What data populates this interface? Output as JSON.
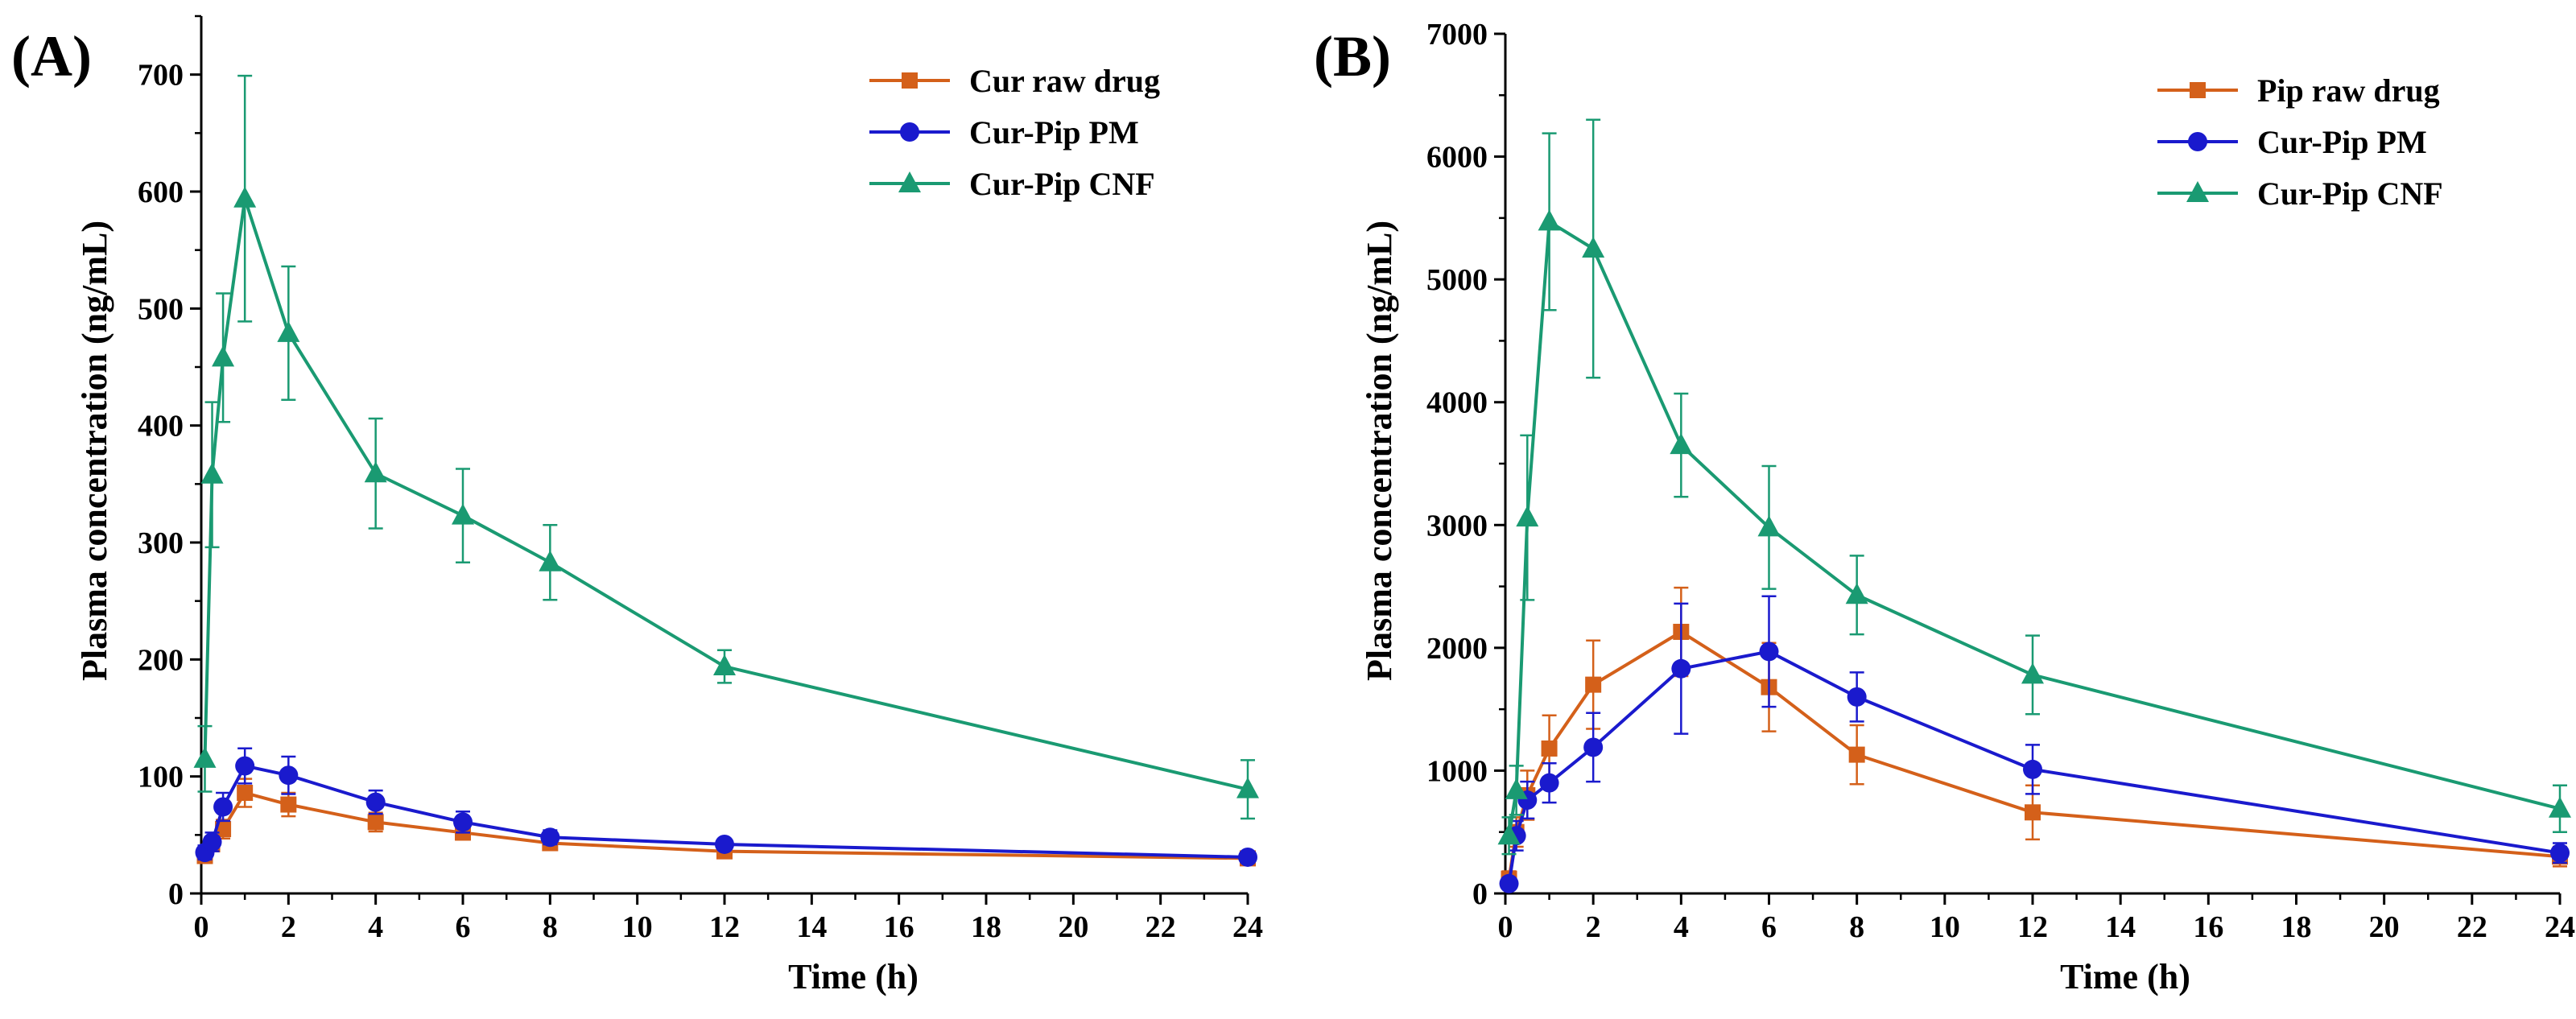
{
  "chart_data": [
    {
      "type": "line",
      "panel_label": "(A)",
      "xlabel": "Time (h)",
      "ylabel": "Plasma concentration (ng/mL)",
      "xlim": [
        0,
        24
      ],
      "ylim": [
        0,
        750
      ],
      "x_ticks": [
        0,
        2,
        4,
        6,
        8,
        10,
        12,
        14,
        16,
        18,
        20,
        22,
        24
      ],
      "x_tick_labels": [
        "0",
        "2",
        "4",
        "6",
        "8",
        "10",
        "12",
        "14",
        "16",
        "18",
        "20",
        "22",
        "24"
      ],
      "y_ticks": [
        0,
        100,
        200,
        300,
        400,
        500,
        600,
        700
      ],
      "y_tick_labels": [
        "0",
        "100",
        "200",
        "300",
        "400",
        "500",
        "600",
        "700"
      ],
      "legend_position": "top-right",
      "series": [
        {
          "name": "Cur raw drug",
          "color": "#d4601a",
          "marker": "square",
          "points": [
            {
              "x": 0.083,
              "y": 32,
              "err": 5
            },
            {
              "x": 0.25,
              "y": 42,
              "err": 6
            },
            {
              "x": 0.5,
              "y": 55,
              "err": 8
            },
            {
              "x": 1,
              "y": 86,
              "err": 12
            },
            {
              "x": 2,
              "y": 76,
              "err": 10
            },
            {
              "x": 4,
              "y": 61,
              "err": 8
            },
            {
              "x": 6,
              "y": 52,
              "err": 6
            },
            {
              "x": 8,
              "y": 43,
              "err": 5
            },
            {
              "x": 12,
              "y": 36,
              "err": 4
            },
            {
              "x": 24,
              "y": 30,
              "err": 3
            }
          ]
        },
        {
          "name": "Cur-Pip PM",
          "color": "#1a1acd",
          "marker": "circle",
          "points": [
            {
              "x": 0.083,
              "y": 35,
              "err": 6
            },
            {
              "x": 0.25,
              "y": 44,
              "err": 8
            },
            {
              "x": 0.5,
              "y": 74,
              "err": 12
            },
            {
              "x": 1,
              "y": 109,
              "err": 15
            },
            {
              "x": 2,
              "y": 101,
              "err": 16
            },
            {
              "x": 4,
              "y": 78,
              "err": 10
            },
            {
              "x": 6,
              "y": 61,
              "err": 9
            },
            {
              "x": 8,
              "y": 48,
              "err": 6
            },
            {
              "x": 12,
              "y": 42,
              "err": 4
            },
            {
              "x": 24,
              "y": 31,
              "err": 3
            }
          ]
        },
        {
          "name": "Cur-Pip CNF",
          "color": "#1a9a72",
          "marker": "triangle",
          "points": [
            {
              "x": 0.083,
              "y": 115,
              "err": 28
            },
            {
              "x": 0.25,
              "y": 358,
              "err": 62
            },
            {
              "x": 0.5,
              "y": 458,
              "err": 55
            },
            {
              "x": 1,
              "y": 594,
              "err": 105
            },
            {
              "x": 2,
              "y": 479,
              "err": 57
            },
            {
              "x": 4,
              "y": 359,
              "err": 47
            },
            {
              "x": 6,
              "y": 323,
              "err": 40
            },
            {
              "x": 8,
              "y": 283,
              "err": 32
            },
            {
              "x": 12,
              "y": 194,
              "err": 14
            },
            {
              "x": 24,
              "y": 89,
              "err": 25
            }
          ]
        }
      ]
    },
    {
      "type": "line",
      "panel_label": "(B)",
      "xlabel": "Time (h)",
      "ylabel": "Plasma concentration (ng/mL)",
      "xlim": [
        0,
        24
      ],
      "ylim": [
        0,
        7000
      ],
      "x_ticks": [
        0,
        2,
        4,
        6,
        8,
        10,
        12,
        14,
        16,
        18,
        20,
        22,
        24
      ],
      "x_tick_labels": [
        "0",
        "2",
        "4",
        "6",
        "8",
        "10",
        "12",
        "14",
        "16",
        "18",
        "20",
        "22",
        "24"
      ],
      "y_ticks": [
        0,
        1000,
        2000,
        3000,
        4000,
        5000,
        6000,
        7000
      ],
      "y_tick_labels": [
        "0",
        "1000",
        "2000",
        "3000",
        "4000",
        "5000",
        "6000",
        "7000"
      ],
      "legend_position": "top-right",
      "series": [
        {
          "name": "Pip raw drug",
          "color": "#d4601a",
          "marker": "square",
          "points": [
            {
              "x": 0.083,
              "y": 120,
              "err": 60
            },
            {
              "x": 0.25,
              "y": 500,
              "err": 120
            },
            {
              "x": 0.5,
              "y": 800,
              "err": 200
            },
            {
              "x": 1,
              "y": 1180,
              "err": 270
            },
            {
              "x": 2,
              "y": 1700,
              "err": 360
            },
            {
              "x": 4,
              "y": 2130,
              "err": 360
            },
            {
              "x": 6,
              "y": 1680,
              "err": 360
            },
            {
              "x": 8,
              "y": 1130,
              "err": 240
            },
            {
              "x": 12,
              "y": 660,
              "err": 220
            },
            {
              "x": 24,
              "y": 300,
              "err": 80
            }
          ]
        },
        {
          "name": "Cur-Pip PM",
          "color": "#1a1acd",
          "marker": "circle",
          "points": [
            {
              "x": 0.083,
              "y": 80,
              "err": 40
            },
            {
              "x": 0.25,
              "y": 470,
              "err": 120
            },
            {
              "x": 0.5,
              "y": 760,
              "err": 150
            },
            {
              "x": 1,
              "y": 900,
              "err": 160
            },
            {
              "x": 2,
              "y": 1190,
              "err": 280
            },
            {
              "x": 4,
              "y": 1830,
              "err": 530
            },
            {
              "x": 6,
              "y": 1970,
              "err": 450
            },
            {
              "x": 8,
              "y": 1600,
              "err": 200
            },
            {
              "x": 12,
              "y": 1010,
              "err": 200
            },
            {
              "x": 24,
              "y": 330,
              "err": 80
            }
          ]
        },
        {
          "name": "Cur-Pip CNF",
          "color": "#1a9a72",
          "marker": "triangle",
          "points": [
            {
              "x": 0.083,
              "y": 470,
              "err": 150
            },
            {
              "x": 0.25,
              "y": 840,
              "err": 200
            },
            {
              "x": 0.5,
              "y": 3060,
              "err": 670
            },
            {
              "x": 1,
              "y": 5470,
              "err": 720
            },
            {
              "x": 2,
              "y": 5250,
              "err": 1050
            },
            {
              "x": 4,
              "y": 3650,
              "err": 420
            },
            {
              "x": 6,
              "y": 2980,
              "err": 500
            },
            {
              "x": 8,
              "y": 2430,
              "err": 320
            },
            {
              "x": 12,
              "y": 1780,
              "err": 320
            },
            {
              "x": 24,
              "y": 690,
              "err": 190
            }
          ]
        }
      ]
    }
  ]
}
